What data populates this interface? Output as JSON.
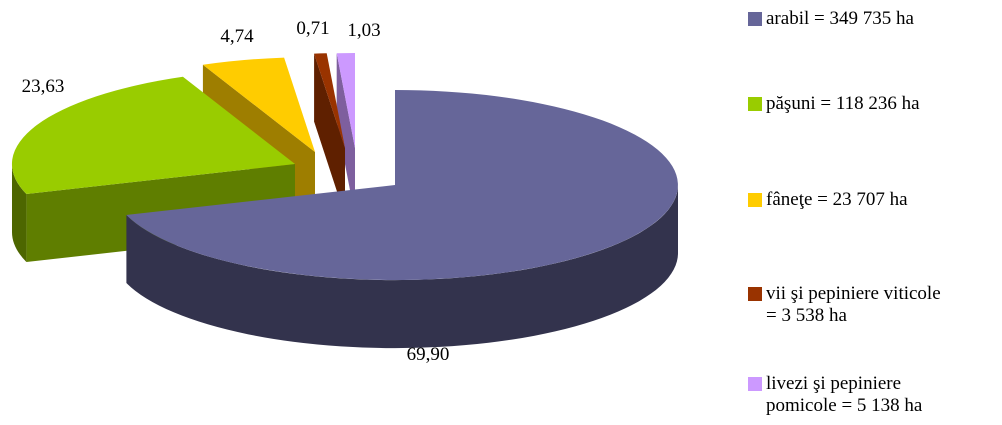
{
  "chart_data": {
    "type": "pie",
    "title": "",
    "unit": "%",
    "slices": [
      {
        "legend": "arabil = 349 735 ha",
        "value": 69.9,
        "label": "69,90",
        "color": "#666699"
      },
      {
        "legend": "păşuni = 118 236 ha",
        "value": 23.63,
        "label": "23,63",
        "color": "#99CC00"
      },
      {
        "legend": "fâneţe = 23 707 ha",
        "value": 4.74,
        "label": "4,74",
        "color": "#FFCC00"
      },
      {
        "legend": "vii şi pepiniere viticole\n= 3 538 ha",
        "value": 0.71,
        "label": "0,71",
        "color": "#993300"
      },
      {
        "legend": "livezi şi pepiniere\npomicole = 5 138 ha",
        "value": 1.03,
        "label": "1,03",
        "color": "#CC99FF"
      }
    ],
    "legend_position": "right",
    "style": "3d-exploded"
  }
}
